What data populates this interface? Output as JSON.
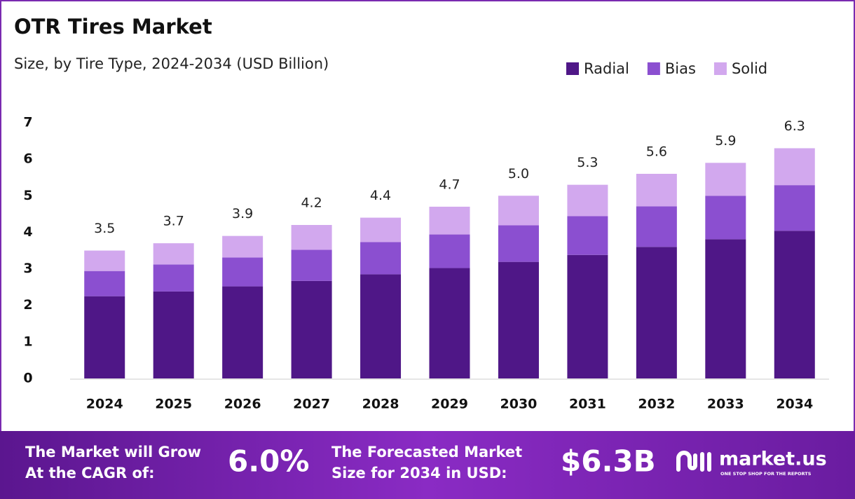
{
  "chart_data": {
    "type": "stacked-bar",
    "title": "OTR Tires Market",
    "subtitle": "Size, by Tire Type, 2024-2034 (USD Billion)",
    "categories": [
      "2024",
      "2025",
      "2026",
      "2027",
      "2028",
      "2029",
      "2030",
      "2031",
      "2032",
      "2033",
      "2034"
    ],
    "series": [
      {
        "name": "Radial",
        "color": "#4f1787",
        "values": [
          2.25,
          2.38,
          2.52,
          2.67,
          2.85,
          3.02,
          3.19,
          3.38,
          3.6,
          3.81,
          4.04
        ]
      },
      {
        "name": "Bias",
        "color": "#8b4fd0",
        "values": [
          0.69,
          0.74,
          0.79,
          0.85,
          0.88,
          0.92,
          1.0,
          1.06,
          1.11,
          1.19,
          1.25
        ]
      },
      {
        "name": "Solid",
        "color": "#d2a8ee",
        "values": [
          0.56,
          0.58,
          0.59,
          0.68,
          0.67,
          0.76,
          0.81,
          0.86,
          0.89,
          0.9,
          1.01
        ]
      }
    ],
    "totals": [
      3.5,
      3.7,
      3.9,
      4.2,
      4.4,
      4.7,
      5.0,
      5.3,
      5.6,
      5.9,
      6.3
    ],
    "total_labels": [
      "3.5",
      "3.7",
      "3.9",
      "4.2",
      "4.4",
      "4.7",
      "5.0",
      "5.3",
      "5.6",
      "5.9",
      "6.3"
    ],
    "ylim": [
      0,
      7
    ],
    "yticks": [
      0,
      1,
      2,
      3,
      4,
      5,
      6,
      7
    ],
    "grid": false,
    "legend": "top-right"
  },
  "footer": {
    "cagr_text": [
      "The Market will Grow",
      "At the CAGR of:"
    ],
    "cagr": "6.0%",
    "forecast_text": [
      "The Forecasted Market",
      "Size for 2034 in USD:"
    ],
    "forecast": "$6.3B",
    "brand": "market.us",
    "tagline": "ONE STOP SHOP FOR THE REPORTS"
  }
}
